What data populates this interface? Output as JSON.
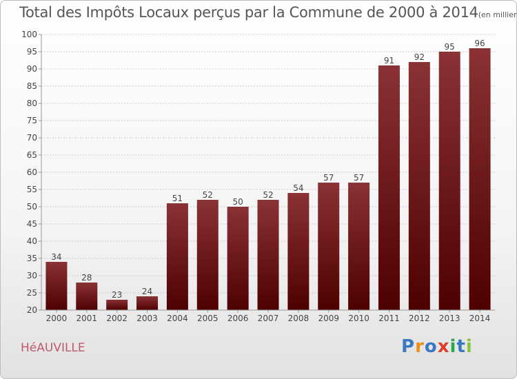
{
  "title": "Total des Impôts Locaux perçus par la Commune de 2000 à 2014",
  "title_unit": "(en milliers d'€)",
  "commune": "HéAUVILLE",
  "logo": {
    "letters": [
      "P",
      "r",
      "o",
      "x",
      "i",
      "t",
      "i"
    ],
    "colors": [
      "#3a78c2",
      "#f08c1c",
      "#3a78c2",
      "#e23b2a",
      "#2aa84a",
      "#3a78c2",
      "#8ac43a"
    ]
  },
  "colors": {
    "bar_top": "#8a3236",
    "bar_bottom": "#4e0000",
    "axis": "#999999",
    "grid": "#cccccc",
    "text": "#444444"
  },
  "chart_data": {
    "type": "bar",
    "categories": [
      "2000",
      "2001",
      "2002",
      "2003",
      "2004",
      "2005",
      "2006",
      "2007",
      "2008",
      "2009",
      "2010",
      "2011",
      "2012",
      "2013",
      "2014"
    ],
    "values": [
      34,
      28,
      23,
      24,
      51,
      52,
      50,
      52,
      54,
      57,
      57,
      91,
      92,
      95,
      96
    ],
    "ylim": [
      20,
      100
    ],
    "yticks": [
      20,
      25,
      30,
      35,
      40,
      45,
      50,
      55,
      60,
      65,
      70,
      75,
      80,
      85,
      90,
      95,
      100
    ],
    "grid": true
  }
}
